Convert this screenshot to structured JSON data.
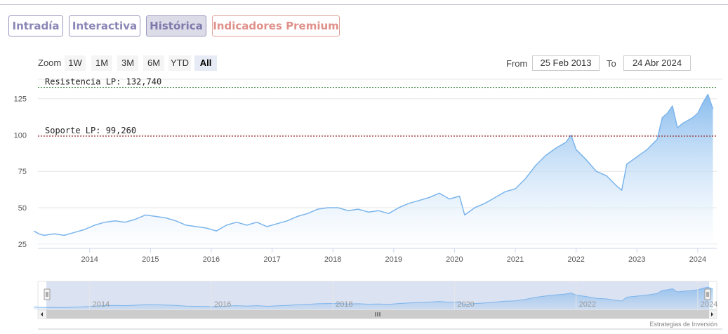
{
  "tabs": [
    {
      "label": "Intradía",
      "active": false
    },
    {
      "label": "Interactiva",
      "active": false
    },
    {
      "label": "Histórica",
      "active": true
    },
    {
      "label": "Indicadores Premium",
      "active": false
    }
  ],
  "zoom": {
    "label": "Zoom",
    "buttons": [
      "1W",
      "1M",
      "3M",
      "6M",
      "YTD",
      "All"
    ],
    "selected": "All"
  },
  "range": {
    "from_label": "From",
    "from_value": "25 Feb 2013",
    "to_label": "To",
    "to_value": "24 Abr 2024"
  },
  "credit": "Estrategias de Inversión",
  "chart_data": {
    "type": "area",
    "x_range": [
      "2013-02-25",
      "2024-04-24"
    ],
    "ylim": [
      22,
      135
    ],
    "yticks": [
      25,
      50,
      75,
      100,
      125
    ],
    "xticks": [
      "2014",
      "2015",
      "2016",
      "2017",
      "2018",
      "2019",
      "2020",
      "2021",
      "2022",
      "2023",
      "2024"
    ],
    "grid": true,
    "colors": {
      "line": "#7cb5ec",
      "fill_top": "#7cb5ec",
      "fill_bottom": "#ffffff",
      "resistance_line": "#2e7d32",
      "support_line": "#8b0000"
    },
    "annotations": [
      {
        "label": "Resistencia LP: 132,740",
        "value": 132.74
      },
      {
        "label": "Soporte LP: 99,260",
        "value": 99.26
      }
    ],
    "series": [
      {
        "x": [
          "2013-02",
          "2013-03",
          "2013-04",
          "2013-06",
          "2013-08",
          "2013-10",
          "2013-12",
          "2014-02",
          "2014-04",
          "2014-06",
          "2014-08",
          "2014-10",
          "2014-12",
          "2015-02",
          "2015-04",
          "2015-06",
          "2015-08",
          "2015-10",
          "2015-12",
          "2016-02",
          "2016-04",
          "2016-06",
          "2016-08",
          "2016-10",
          "2016-12",
          "2017-02",
          "2017-04",
          "2017-06",
          "2017-08",
          "2017-10",
          "2017-12",
          "2018-02",
          "2018-04",
          "2018-06",
          "2018-08",
          "2018-10",
          "2018-12",
          "2019-02",
          "2019-04",
          "2019-06",
          "2019-08",
          "2019-10",
          "2019-12",
          "2020-02",
          "2020-03",
          "2020-05",
          "2020-07",
          "2020-09",
          "2020-11",
          "2021-01",
          "2021-03",
          "2021-05",
          "2021-07",
          "2021-09",
          "2021-11",
          "2021-12",
          "2022-01",
          "2022-03",
          "2022-05",
          "2022-07",
          "2022-09",
          "2022-10",
          "2022-11",
          "2023-01",
          "2023-03",
          "2023-05",
          "2023-06",
          "2023-07",
          "2023-08",
          "2023-09",
          "2023-10",
          "2023-11",
          "2023-12",
          "2024-01",
          "2024-02",
          "2024-03",
          "2024-04"
        ],
        "values": [
          34,
          32,
          31,
          32,
          31,
          33,
          35,
          38,
          40,
          41,
          40,
          42,
          45,
          44,
          43,
          41,
          38,
          37,
          36,
          34,
          38,
          40,
          38,
          40,
          37,
          39,
          41,
          44,
          46,
          49,
          50,
          50,
          48,
          49,
          47,
          48,
          46,
          50,
          53,
          55,
          57,
          60,
          56,
          58,
          45,
          50,
          53,
          57,
          61,
          63,
          70,
          79,
          86,
          91,
          95,
          100,
          90,
          83,
          75,
          72,
          65,
          62,
          80,
          85,
          90,
          97,
          112,
          115,
          120,
          105,
          108,
          110,
          112,
          115,
          122,
          128,
          118
        ]
      }
    ]
  }
}
